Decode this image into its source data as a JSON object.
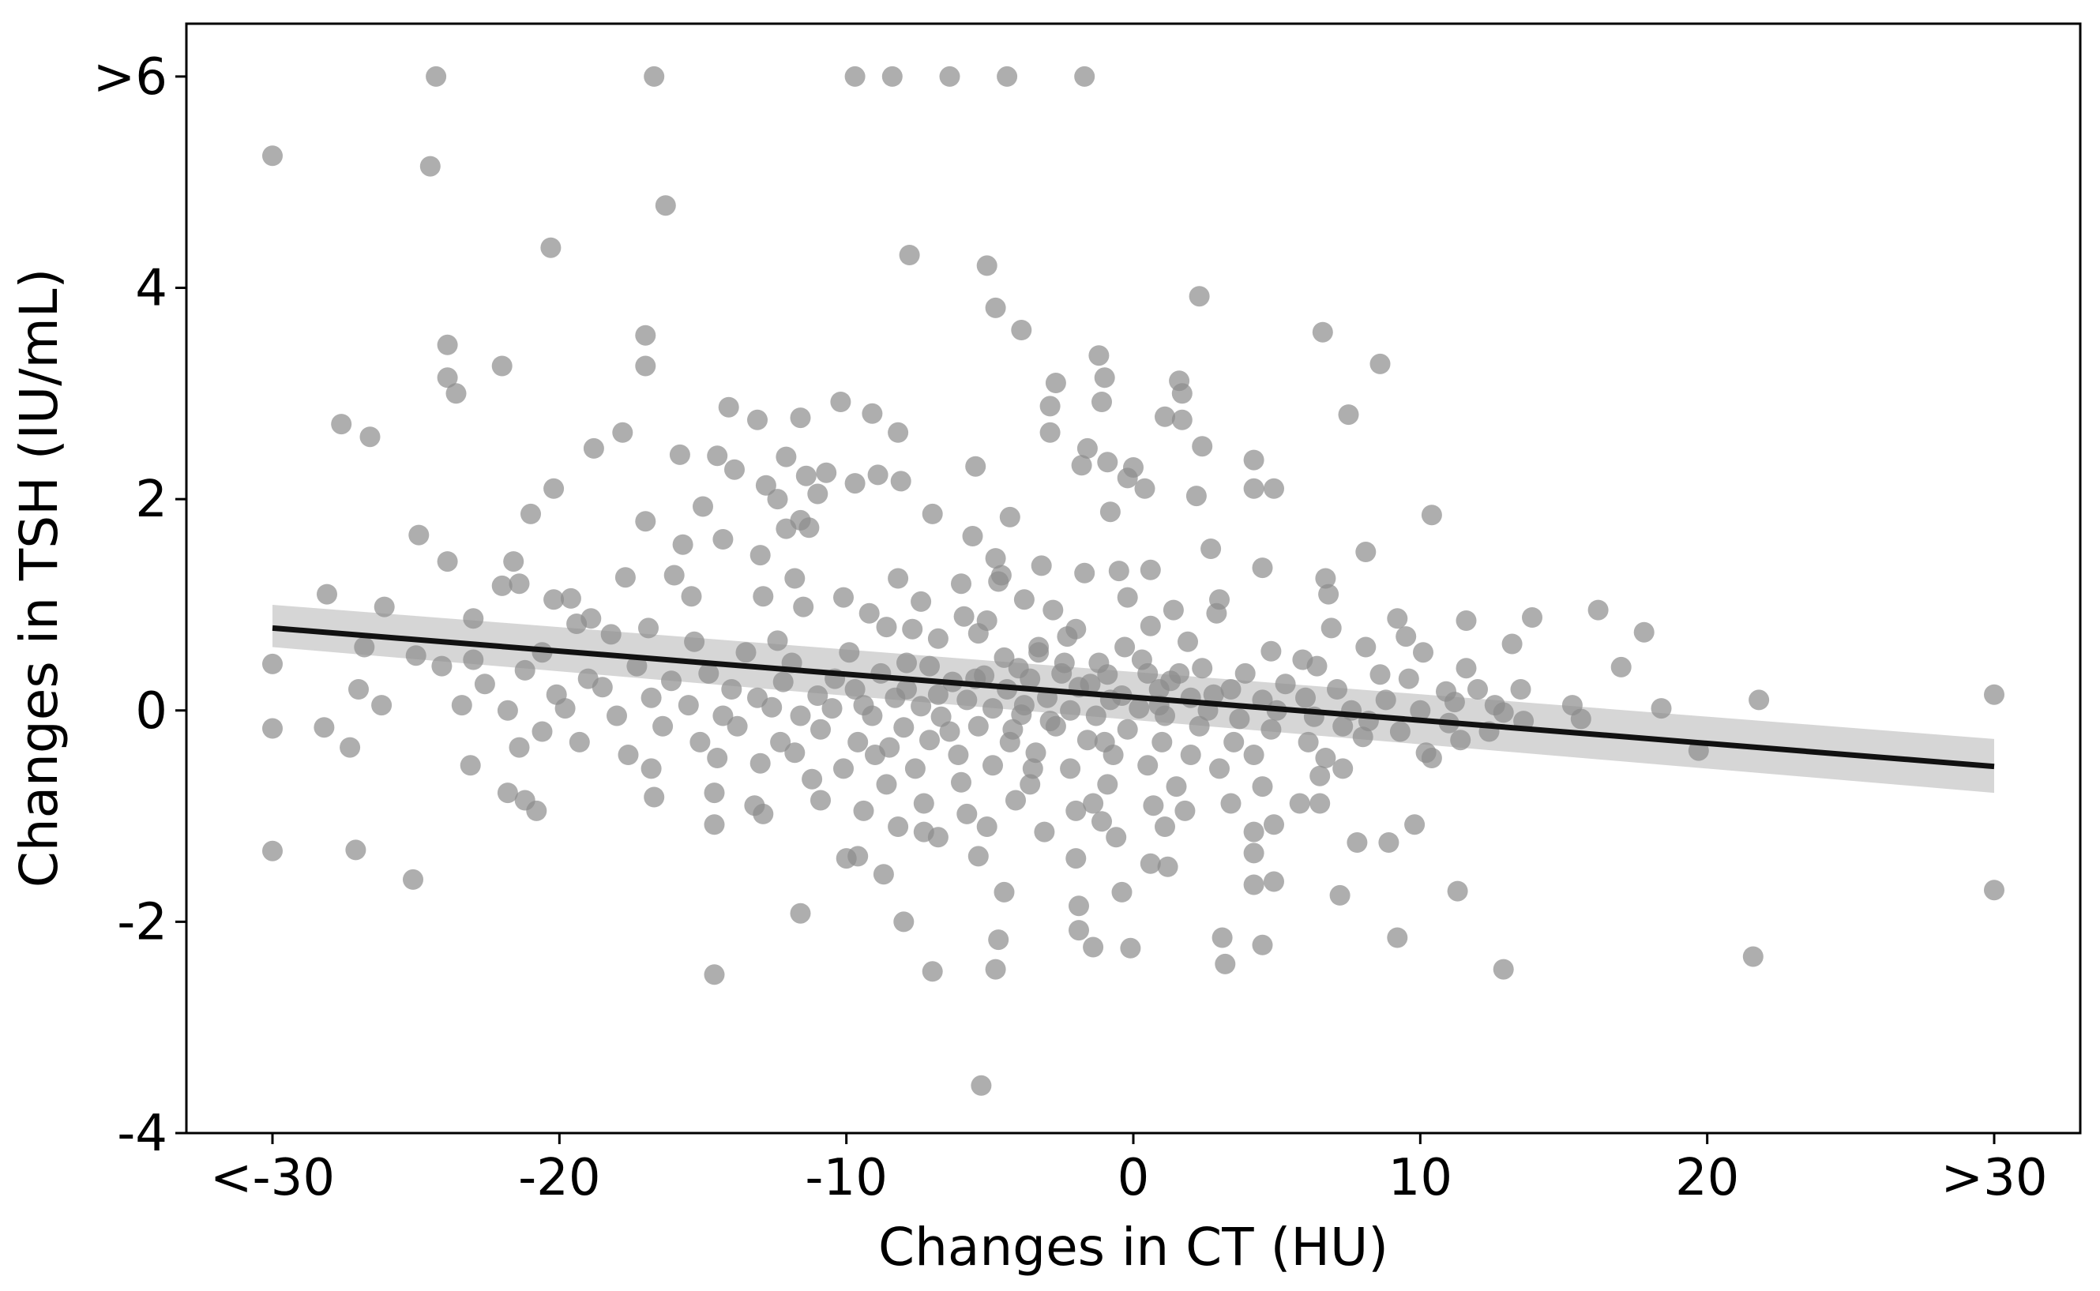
{
  "chart_data": {
    "type": "scatter",
    "title": "",
    "xlabel": "Changes in CT (HU)",
    "ylabel": "Changes in TSH (IU/mL)",
    "xlim": [
      -33,
      33
    ],
    "ylim": [
      -4,
      6.5
    ],
    "xticks": [
      {
        "value": -30,
        "label": "<-30"
      },
      {
        "value": -20,
        "label": "-20"
      },
      {
        "value": -10,
        "label": "-10"
      },
      {
        "value": 0,
        "label": "0"
      },
      {
        "value": 10,
        "label": "10"
      },
      {
        "value": 20,
        "label": "20"
      },
      {
        "value": 30,
        "label": ">30"
      }
    ],
    "yticks": [
      {
        "value": -4,
        "label": "-4"
      },
      {
        "value": -2,
        "label": "-2"
      },
      {
        "value": 0,
        "label": "0"
      },
      {
        "value": 2,
        "label": "2"
      },
      {
        "value": 4,
        "label": "4"
      },
      {
        "value": 6,
        "label": ">6"
      }
    ],
    "regression": {
      "x": [
        -30,
        30
      ],
      "y": [
        0.78,
        -0.53
      ],
      "ci_lower": [
        0.6,
        -0.78
      ],
      "ci_upper": [
        1.0,
        -0.27
      ]
    },
    "colors": {
      "points": "#8c8c8c",
      "line": "#111111",
      "band": "#c8c8c8"
    },
    "points": [
      [
        -30,
        5.25
      ],
      [
        -24.3,
        6.0
      ],
      [
        -16.7,
        6.0
      ],
      [
        -9.7,
        6.0
      ],
      [
        -8.4,
        6.0
      ],
      [
        -6.4,
        6.0
      ],
      [
        -4.4,
        6.0
      ],
      [
        -1.7,
        6.0
      ],
      [
        -24.5,
        5.15
      ],
      [
        -16.3,
        4.78
      ],
      [
        -20.3,
        4.38
      ],
      [
        -7.8,
        4.31
      ],
      [
        -5.1,
        4.21
      ],
      [
        2.3,
        3.92
      ],
      [
        -4.8,
        3.81
      ],
      [
        -3.9,
        3.6
      ],
      [
        6.6,
        3.58
      ],
      [
        -17.0,
        3.55
      ],
      [
        -23.9,
        3.46
      ],
      [
        -1.2,
        3.36
      ],
      [
        8.6,
        3.28
      ],
      [
        -22.0,
        3.26
      ],
      [
        -17.0,
        3.26
      ],
      [
        -23.9,
        3.15
      ],
      [
        -1.0,
        3.15
      ],
      [
        1.6,
        3.12
      ],
      [
        -2.7,
        3.1
      ],
      [
        1.7,
        3.0
      ],
      [
        -23.6,
        3.0
      ],
      [
        -1.1,
        2.92
      ],
      [
        -10.2,
        2.92
      ],
      [
        -2.9,
        2.88
      ],
      [
        -14.1,
        2.87
      ],
      [
        -9.1,
        2.81
      ],
      [
        7.5,
        2.8
      ],
      [
        1.1,
        2.78
      ],
      [
        -11.6,
        2.77
      ],
      [
        -13.1,
        2.75
      ],
      [
        1.7,
        2.75
      ],
      [
        -27.6,
        2.71
      ],
      [
        -26.6,
        2.59
      ],
      [
        -8.2,
        2.63
      ],
      [
        -17.8,
        2.63
      ],
      [
        -2.9,
        2.63
      ],
      [
        -18.8,
        2.48
      ],
      [
        -1.6,
        2.48
      ],
      [
        2.4,
        2.5
      ],
      [
        -12.1,
        2.4
      ],
      [
        -15.8,
        2.42
      ],
      [
        -14.5,
        2.41
      ],
      [
        -0.9,
        2.35
      ],
      [
        4.2,
        2.37
      ],
      [
        -1.8,
        2.32
      ],
      [
        -5.5,
        2.31
      ],
      [
        0.0,
        2.3
      ],
      [
        -13.9,
        2.28
      ],
      [
        -8.9,
        2.23
      ],
      [
        -10.7,
        2.25
      ],
      [
        -11.4,
        2.22
      ],
      [
        -0.2,
        2.2
      ],
      [
        -9.7,
        2.15
      ],
      [
        -8.1,
        2.17
      ],
      [
        0.4,
        2.1
      ],
      [
        -12.8,
        2.13
      ],
      [
        -20.2,
        2.1
      ],
      [
        4.2,
        2.1
      ],
      [
        4.9,
        2.1
      ],
      [
        -11.0,
        2.05
      ],
      [
        -12.4,
        2.0
      ],
      [
        2.2,
        2.03
      ],
      [
        -15.0,
        1.93
      ],
      [
        -0.8,
        1.88
      ],
      [
        -7.0,
        1.86
      ],
      [
        -21.0,
        1.86
      ],
      [
        10.4,
        1.85
      ],
      [
        -4.3,
        1.83
      ],
      [
        -11.6,
        1.8
      ],
      [
        -17.0,
        1.79
      ],
      [
        -11.3,
        1.73
      ],
      [
        -12.1,
        1.72
      ],
      [
        -24.9,
        1.66
      ],
      [
        -5.6,
        1.65
      ],
      [
        -14.3,
        1.62
      ],
      [
        -15.7,
        1.57
      ],
      [
        2.7,
        1.53
      ],
      [
        8.1,
        1.5
      ],
      [
        -13.0,
        1.47
      ],
      [
        -4.8,
        1.44
      ],
      [
        -23.9,
        1.41
      ],
      [
        -21.6,
        1.41
      ],
      [
        -3.2,
        1.37
      ],
      [
        0.6,
        1.33
      ],
      [
        -0.5,
        1.32
      ],
      [
        4.5,
        1.35
      ],
      [
        -1.7,
        1.3
      ],
      [
        -4.6,
        1.28
      ],
      [
        -16.0,
        1.28
      ],
      [
        -17.7,
        1.26
      ],
      [
        -4.7,
        1.22
      ],
      [
        -11.8,
        1.25
      ],
      [
        -8.2,
        1.25
      ],
      [
        -6.0,
        1.2
      ],
      [
        6.7,
        1.25
      ],
      [
        -20.2,
        1.05
      ],
      [
        -21.4,
        1.2
      ],
      [
        -22.0,
        1.18
      ],
      [
        -28.1,
        1.1
      ],
      [
        -15.4,
        1.08
      ],
      [
        -12.9,
        1.08
      ],
      [
        -10.1,
        1.07
      ],
      [
        -3.8,
        1.05
      ],
      [
        -0.2,
        1.07
      ],
      [
        -19.6,
        1.06
      ],
      [
        -7.4,
        1.03
      ],
      [
        3.0,
        1.05
      ],
      [
        6.8,
        1.1
      ],
      [
        -26.1,
        0.98
      ],
      [
        -11.5,
        0.98
      ],
      [
        -9.2,
        0.92
      ],
      [
        -2.8,
        0.95
      ],
      [
        1.4,
        0.95
      ],
      [
        2.9,
        0.92
      ],
      [
        -18.9,
        0.87
      ],
      [
        -23.0,
        0.87
      ],
      [
        -5.9,
        0.89
      ],
      [
        9.2,
        0.87
      ],
      [
        13.9,
        0.88
      ],
      [
        16.2,
        0.95
      ],
      [
        17.8,
        0.74
      ],
      [
        -19.4,
        0.82
      ],
      [
        -16.9,
        0.78
      ],
      [
        -8.6,
        0.79
      ],
      [
        -7.7,
        0.77
      ],
      [
        -5.4,
        0.73
      ],
      [
        -2.0,
        0.77
      ],
      [
        0.6,
        0.8
      ],
      [
        6.9,
        0.78
      ],
      [
        11.6,
        0.85
      ],
      [
        -18.2,
        0.72
      ],
      [
        -15.3,
        0.65
      ],
      [
        -12.4,
        0.66
      ],
      [
        -6.8,
        0.68
      ],
      [
        -3.3,
        0.6
      ],
      [
        1.9,
        0.65
      ],
      [
        4.8,
        0.56
      ],
      [
        8.1,
        0.6
      ],
      [
        9.5,
        0.7
      ],
      [
        -26.8,
        0.6
      ],
      [
        -25.0,
        0.52
      ],
      [
        -20.6,
        0.55
      ],
      [
        -13.5,
        0.55
      ],
      [
        -9.9,
        0.55
      ],
      [
        -4.5,
        0.5
      ],
      [
        0.3,
        0.48
      ],
      [
        5.9,
        0.48
      ],
      [
        10.1,
        0.55
      ],
      [
        13.2,
        0.63
      ],
      [
        -30,
        0.44
      ],
      [
        -23.0,
        0.48
      ],
      [
        -17.3,
        0.42
      ],
      [
        -11.9,
        0.45
      ],
      [
        -7.1,
        0.42
      ],
      [
        -2.4,
        0.45
      ],
      [
        2.4,
        0.4
      ],
      [
        6.4,
        0.42
      ],
      [
        11.6,
        0.4
      ],
      [
        17.0,
        0.41
      ],
      [
        -21.2,
        0.38
      ],
      [
        -14.8,
        0.35
      ],
      [
        -8.8,
        0.35
      ],
      [
        -5.2,
        0.33
      ],
      [
        -0.9,
        0.34
      ],
      [
        3.9,
        0.35
      ],
      [
        8.6,
        0.34
      ],
      [
        -24.1,
        0.42
      ],
      [
        -19.0,
        0.3
      ],
      [
        -16.1,
        0.28
      ],
      [
        -12.2,
        0.27
      ],
      [
        -10.4,
        0.3
      ],
      [
        -6.3,
        0.27
      ],
      [
        -3.6,
        0.3
      ],
      [
        1.3,
        0.28
      ],
      [
        5.3,
        0.25
      ],
      [
        9.6,
        0.3
      ],
      [
        12.0,
        0.2
      ],
      [
        -22.6,
        0.25
      ],
      [
        -18.5,
        0.22
      ],
      [
        -14.0,
        0.2
      ],
      [
        -9.7,
        0.2
      ],
      [
        -7.9,
        0.2
      ],
      [
        -4.4,
        0.2
      ],
      [
        -1.9,
        0.22
      ],
      [
        0.9,
        0.2
      ],
      [
        3.4,
        0.2
      ],
      [
        7.1,
        0.2
      ],
      [
        10.9,
        0.18
      ],
      [
        13.5,
        0.2
      ],
      [
        21.8,
        0.1
      ],
      [
        30,
        0.15
      ],
      [
        -27.0,
        0.2
      ],
      [
        -20.1,
        0.15
      ],
      [
        -16.8,
        0.12
      ],
      [
        -13.1,
        0.12
      ],
      [
        -11.0,
        0.14
      ],
      [
        -8.3,
        0.12
      ],
      [
        -5.8,
        0.1
      ],
      [
        -3.0,
        0.12
      ],
      [
        -0.4,
        0.14
      ],
      [
        2.0,
        0.12
      ],
      [
        4.5,
        0.1
      ],
      [
        6.0,
        0.12
      ],
      [
        8.8,
        0.1
      ],
      [
        11.2,
        0.08
      ],
      [
        12.6,
        0.05
      ],
      [
        15.3,
        0.05
      ],
      [
        18.4,
        0.02
      ],
      [
        -26.2,
        0.05
      ],
      [
        -23.4,
        0.05
      ],
      [
        -19.8,
        0.02
      ],
      [
        -15.5,
        0.05
      ],
      [
        -12.6,
        0.03
      ],
      [
        -10.5,
        0.02
      ],
      [
        -7.4,
        0.04
      ],
      [
        -4.9,
        0.02
      ],
      [
        -2.2,
        0.0
      ],
      [
        0.2,
        0.02
      ],
      [
        2.6,
        0.0
      ],
      [
        5.0,
        0.0
      ],
      [
        7.6,
        0.0
      ],
      [
        10.0,
        0.0
      ],
      [
        12.9,
        -0.02
      ],
      [
        15.6,
        -0.08
      ],
      [
        -21.8,
        0.0
      ],
      [
        -18.0,
        -0.05
      ],
      [
        -14.3,
        -0.05
      ],
      [
        -11.6,
        -0.05
      ],
      [
        -9.1,
        -0.05
      ],
      [
        -6.7,
        -0.06
      ],
      [
        -3.9,
        -0.04
      ],
      [
        -1.3,
        -0.05
      ],
      [
        1.1,
        -0.05
      ],
      [
        3.7,
        -0.08
      ],
      [
        6.3,
        -0.06
      ],
      [
        8.2,
        -0.1
      ],
      [
        11.0,
        -0.12
      ],
      [
        13.6,
        -0.1
      ],
      [
        -30,
        -0.17
      ],
      [
        -28.2,
        -0.16
      ],
      [
        -20.6,
        -0.2
      ],
      [
        -16.4,
        -0.15
      ],
      [
        -13.8,
        -0.15
      ],
      [
        -10.9,
        -0.18
      ],
      [
        -8.0,
        -0.16
      ],
      [
        -5.4,
        -0.15
      ],
      [
        -2.7,
        -0.15
      ],
      [
        -0.2,
        -0.18
      ],
      [
        2.3,
        -0.15
      ],
      [
        4.8,
        -0.18
      ],
      [
        7.3,
        -0.15
      ],
      [
        9.3,
        -0.2
      ],
      [
        12.4,
        -0.2
      ],
      [
        -19.3,
        -0.3
      ],
      [
        -15.1,
        -0.3
      ],
      [
        -12.3,
        -0.3
      ],
      [
        -9.6,
        -0.3
      ],
      [
        -7.1,
        -0.28
      ],
      [
        -4.3,
        -0.3
      ],
      [
        -1.6,
        -0.28
      ],
      [
        1.0,
        -0.3
      ],
      [
        3.5,
        -0.3
      ],
      [
        6.1,
        -0.3
      ],
      [
        8.0,
        -0.25
      ],
      [
        11.4,
        -0.28
      ],
      [
        19.7,
        -0.38
      ],
      [
        -27.3,
        -0.35
      ],
      [
        -21.4,
        -0.35
      ],
      [
        -17.6,
        -0.42
      ],
      [
        -14.5,
        -0.45
      ],
      [
        -11.8,
        -0.4
      ],
      [
        -9.0,
        -0.42
      ],
      [
        -6.1,
        -0.42
      ],
      [
        -3.4,
        -0.4
      ],
      [
        -0.7,
        -0.42
      ],
      [
        2.0,
        -0.42
      ],
      [
        4.2,
        -0.42
      ],
      [
        6.7,
        -0.45
      ],
      [
        10.4,
        -0.45
      ],
      [
        -23.1,
        -0.52
      ],
      [
        -16.8,
        -0.55
      ],
      [
        -13.0,
        -0.5
      ],
      [
        -10.1,
        -0.55
      ],
      [
        -7.6,
        -0.55
      ],
      [
        -4.9,
        -0.52
      ],
      [
        -2.2,
        -0.55
      ],
      [
        0.5,
        -0.52
      ],
      [
        3.0,
        -0.55
      ],
      [
        7.3,
        -0.55
      ],
      [
        10.2,
        -0.4
      ],
      [
        -21.8,
        -0.78
      ],
      [
        -14.6,
        -0.78
      ],
      [
        -11.2,
        -0.65
      ],
      [
        -8.6,
        -0.7
      ],
      [
        -6.0,
        -0.68
      ],
      [
        -3.6,
        -0.7
      ],
      [
        -0.9,
        -0.7
      ],
      [
        1.5,
        -0.72
      ],
      [
        4.5,
        -0.72
      ],
      [
        6.5,
        -0.62
      ],
      [
        -21.2,
        -0.85
      ],
      [
        -16.7,
        -0.82
      ],
      [
        -13.2,
        -0.9
      ],
      [
        -10.9,
        -0.85
      ],
      [
        -7.3,
        -0.88
      ],
      [
        -4.1,
        -0.85
      ],
      [
        -1.4,
        -0.88
      ],
      [
        0.7,
        -0.9
      ],
      [
        3.4,
        -0.88
      ],
      [
        6.5,
        -0.88
      ],
      [
        -20.8,
        -0.95
      ],
      [
        -12.9,
        -0.98
      ],
      [
        -9.4,
        -0.95
      ],
      [
        -5.8,
        -0.98
      ],
      [
        -2.0,
        -0.95
      ],
      [
        1.8,
        -0.95
      ],
      [
        5.8,
        -0.88
      ],
      [
        -14.6,
        -1.08
      ],
      [
        -8.2,
        -1.1
      ],
      [
        -5.1,
        -1.1
      ],
      [
        -1.1,
        -1.05
      ],
      [
        1.1,
        -1.1
      ],
      [
        4.9,
        -1.08
      ],
      [
        7.8,
        -1.25
      ],
      [
        9.8,
        -1.08
      ],
      [
        -6.8,
        -1.2
      ],
      [
        -3.1,
        -1.15
      ],
      [
        -0.6,
        -1.2
      ],
      [
        4.2,
        -1.15
      ],
      [
        8.9,
        -1.25
      ],
      [
        -30,
        -1.33
      ],
      [
        -27.1,
        -1.32
      ],
      [
        -7.3,
        -1.15
      ],
      [
        -2.0,
        -1.4
      ],
      [
        0.6,
        -1.45
      ],
      [
        4.2,
        -1.35
      ],
      [
        -10.0,
        -1.4
      ],
      [
        -9.6,
        -1.38
      ],
      [
        -5.4,
        -1.38
      ],
      [
        1.2,
        -1.48
      ],
      [
        -8.7,
        -1.55
      ],
      [
        -25.1,
        -1.6
      ],
      [
        4.2,
        -1.65
      ],
      [
        4.9,
        -1.62
      ],
      [
        -4.5,
        -1.72
      ],
      [
        -0.4,
        -1.72
      ],
      [
        7.2,
        -1.75
      ],
      [
        11.3,
        -1.71
      ],
      [
        30,
        -1.7
      ],
      [
        -1.9,
        -1.85
      ],
      [
        -11.6,
        -1.92
      ],
      [
        -8.0,
        -2.0
      ],
      [
        -1.9,
        -2.08
      ],
      [
        -4.7,
        -2.17
      ],
      [
        3.1,
        -2.15
      ],
      [
        4.5,
        -2.22
      ],
      [
        9.2,
        -2.15
      ],
      [
        -1.4,
        -2.24
      ],
      [
        -0.1,
        -2.25
      ],
      [
        21.6,
        -2.33
      ],
      [
        3.2,
        -2.4
      ],
      [
        12.9,
        -2.45
      ],
      [
        -4.8,
        -2.45
      ],
      [
        -7.0,
        -2.47
      ],
      [
        -14.6,
        -2.5
      ],
      [
        -5.3,
        -3.55
      ],
      [
        -3.3,
        0.55
      ],
      [
        -2.5,
        0.35
      ],
      [
        -1.5,
        0.25
      ],
      [
        -0.8,
        0.1
      ],
      [
        -3.8,
        0.05
      ],
      [
        -5.5,
        0.3
      ],
      [
        -6.8,
        0.15
      ],
      [
        -2.9,
        -0.1
      ],
      [
        -1.2,
        0.45
      ],
      [
        0.5,
        0.35
      ],
      [
        -4.2,
        -0.18
      ],
      [
        -6.4,
        -0.2
      ],
      [
        -2.3,
        0.7
      ],
      [
        -0.3,
        0.6
      ],
      [
        1.6,
        0.35
      ],
      [
        -7.9,
        0.45
      ],
      [
        -9.4,
        0.05
      ],
      [
        -5.1,
        0.85
      ],
      [
        -3.5,
        -0.55
      ],
      [
        -1.0,
        -0.3
      ],
      [
        0.9,
        0.05
      ],
      [
        2.8,
        0.15
      ],
      [
        -8.5,
        -0.35
      ],
      [
        -4.0,
        0.4
      ]
    ]
  }
}
